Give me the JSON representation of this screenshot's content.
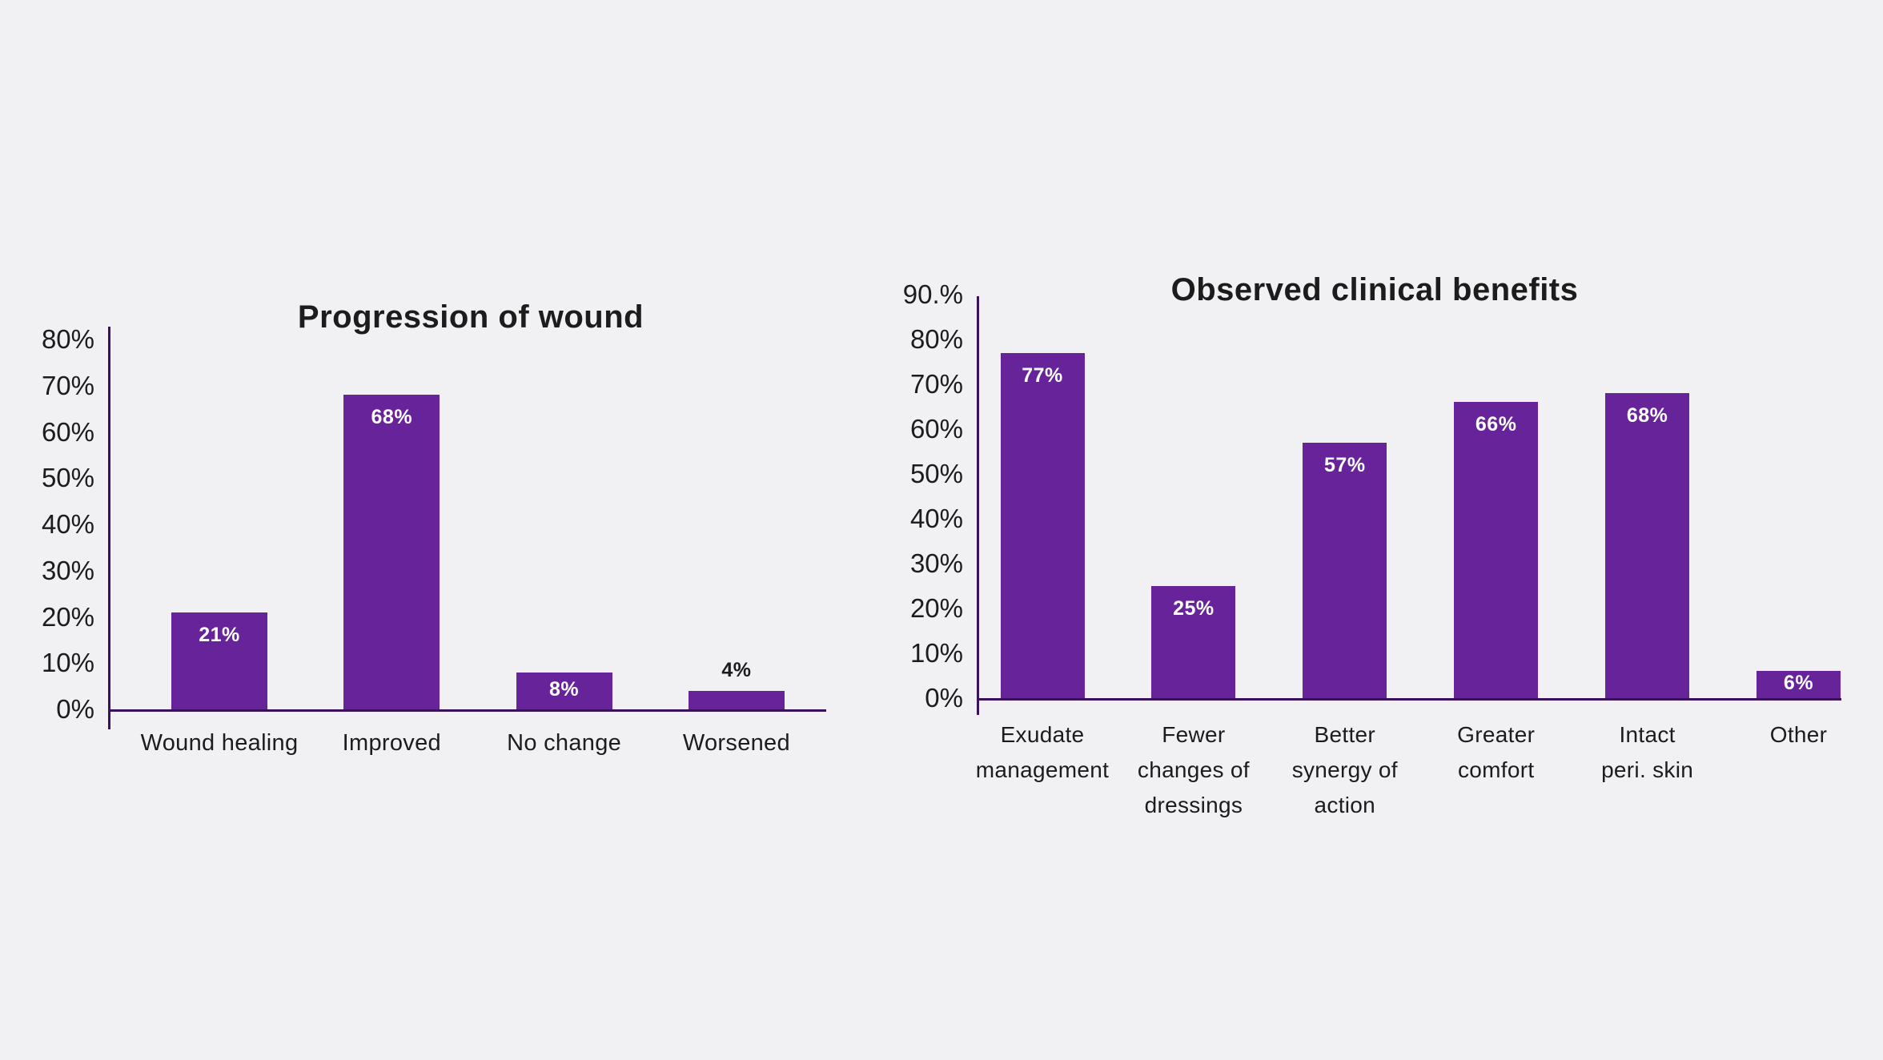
{
  "page": {
    "background": "#f1f1f4"
  },
  "colors": {
    "bar": "#67249a",
    "axis": "#3a115c",
    "text": "#1c1c1c",
    "value_label_inside": "#ffffff",
    "value_label_outside": "#1c1c1c"
  },
  "chart_data": [
    {
      "type": "bar",
      "title": "Progression of wound",
      "categories": [
        "Wound healing",
        "Improved",
        "No change",
        "Worsened"
      ],
      "category_lines": [
        [
          "Wound healing"
        ],
        [
          "Improved"
        ],
        [
          "No change"
        ],
        [
          "Worsened"
        ]
      ],
      "values": [
        21,
        68,
        8,
        4
      ],
      "value_labels": [
        "21%",
        "68%",
        "8%",
        "4%"
      ],
      "value_label_placement": [
        "inside",
        "inside",
        "inside",
        "outside"
      ],
      "ylim": [
        0,
        80
      ],
      "ytick_labels": [
        "0%",
        "10%",
        "20%",
        "30%",
        "40%",
        "50%",
        "60%",
        "70%",
        "80%"
      ],
      "xlabel": "",
      "ylabel": "",
      "grid": false,
      "legend": "none",
      "bar_color": "#67249a"
    },
    {
      "type": "bar",
      "title": "Observed clinical benefits",
      "categories": [
        "Exudate management",
        "Fewer changes of dressings",
        "Better synergy of action",
        "Greater comfort",
        "Intact peri. skin",
        "Other"
      ],
      "category_lines": [
        [
          "Exudate",
          "management"
        ],
        [
          "Fewer",
          "changes of",
          "dressings"
        ],
        [
          "Better",
          "synergy of",
          "action"
        ],
        [
          "Greater",
          "comfort"
        ],
        [
          "Intact",
          "peri. skin"
        ],
        [
          "Other"
        ]
      ],
      "values": [
        77,
        25,
        57,
        66,
        68,
        6
      ],
      "value_labels": [
        "77%",
        "25%",
        "57%",
        "66%",
        "68%",
        "6%"
      ],
      "value_label_placement": [
        "inside",
        "inside",
        "inside",
        "inside",
        "inside",
        "inside"
      ],
      "ylim": [
        0,
        90
      ],
      "ytick_labels": [
        "0%",
        "10%",
        "20%",
        "30%",
        "40%",
        "50%",
        "60%",
        "70%",
        "80%",
        "90.%"
      ],
      "xlabel": "",
      "ylabel": "",
      "grid": false,
      "legend": "none",
      "bar_color": "#67249a"
    }
  ]
}
